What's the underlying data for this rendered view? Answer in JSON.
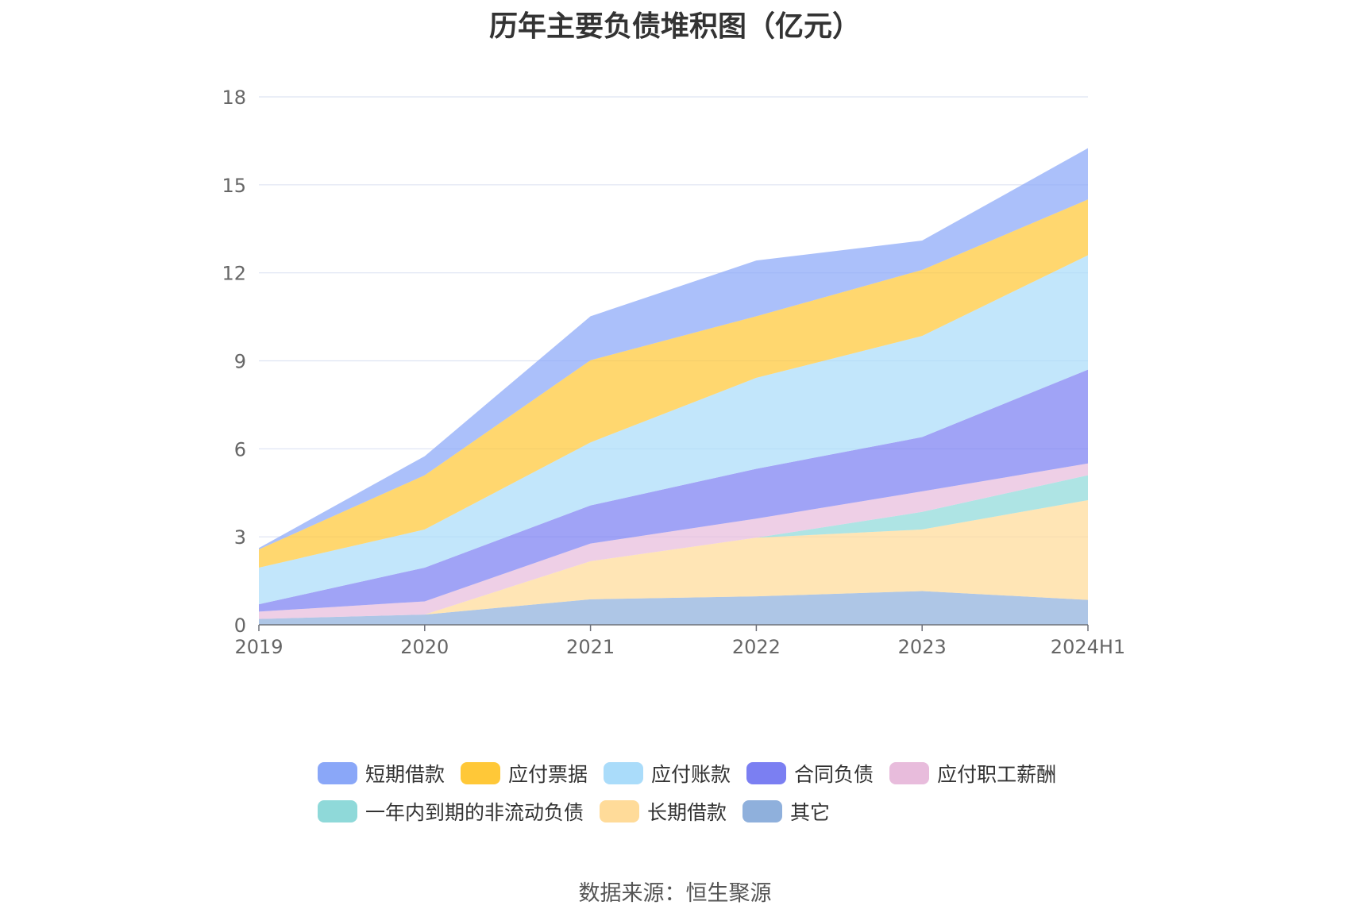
{
  "chart_data": {
    "type": "area",
    "stacked": true,
    "title": "历年主要负债堆积图（亿元）",
    "categories": [
      "2019",
      "2020",
      "2021",
      "2022",
      "2023",
      "2024H1"
    ],
    "ylim": [
      0,
      18
    ],
    "yticks": [
      0,
      3,
      6,
      9,
      12,
      15,
      18
    ],
    "grid": true,
    "legend_position": "bottom",
    "series": [
      {
        "name": "其它",
        "color": "#8fb0dc",
        "values": [
          0.2,
          0.35,
          0.87,
          0.97,
          1.15,
          0.85
        ]
      },
      {
        "name": "长期借款",
        "color": "#ffdb99",
        "values": [
          0.0,
          0.0,
          1.3,
          2.0,
          2.1,
          3.4
        ]
      },
      {
        "name": "一年内到期的非流动负债",
        "color": "#8fd9d9",
        "values": [
          0.0,
          0.0,
          0.0,
          0.0,
          0.6,
          0.85
        ]
      },
      {
        "name": "应付职工薪酬",
        "color": "#e8bcdc",
        "values": [
          0.25,
          0.45,
          0.6,
          0.65,
          0.7,
          0.4
        ]
      },
      {
        "name": "合同负债",
        "color": "#7b7ff2",
        "values": [
          0.25,
          1.15,
          1.3,
          1.7,
          1.85,
          3.2
        ]
      },
      {
        "name": "应付账款",
        "color": "#aadcfa",
        "values": [
          1.25,
          1.3,
          2.15,
          3.1,
          3.45,
          3.9
        ]
      },
      {
        "name": "应付票据",
        "color": "#ffc838",
        "values": [
          0.62,
          1.85,
          2.8,
          2.1,
          2.25,
          1.9
        ]
      },
      {
        "name": "短期借款",
        "color": "#8aa7f8",
        "values": [
          0.05,
          0.65,
          1.5,
          1.9,
          1.0,
          1.75
        ]
      }
    ]
  },
  "legend": {
    "rows": [
      [
        {
          "label": "短期借款",
          "color": "#8aa7f8"
        },
        {
          "label": "应付票据",
          "color": "#ffc838"
        },
        {
          "label": "应付账款",
          "color": "#aadcfa"
        },
        {
          "label": "合同负债",
          "color": "#7b7ff2"
        },
        {
          "label": "应付职工薪酬",
          "color": "#e8bcdc"
        }
      ],
      [
        {
          "label": "一年内到期的非流动负债",
          "color": "#8fd9d9"
        },
        {
          "label": "长期借款",
          "color": "#ffdb99"
        },
        {
          "label": "其它",
          "color": "#8fb0dc"
        }
      ]
    ]
  },
  "source_text": "数据来源：恒生聚源"
}
